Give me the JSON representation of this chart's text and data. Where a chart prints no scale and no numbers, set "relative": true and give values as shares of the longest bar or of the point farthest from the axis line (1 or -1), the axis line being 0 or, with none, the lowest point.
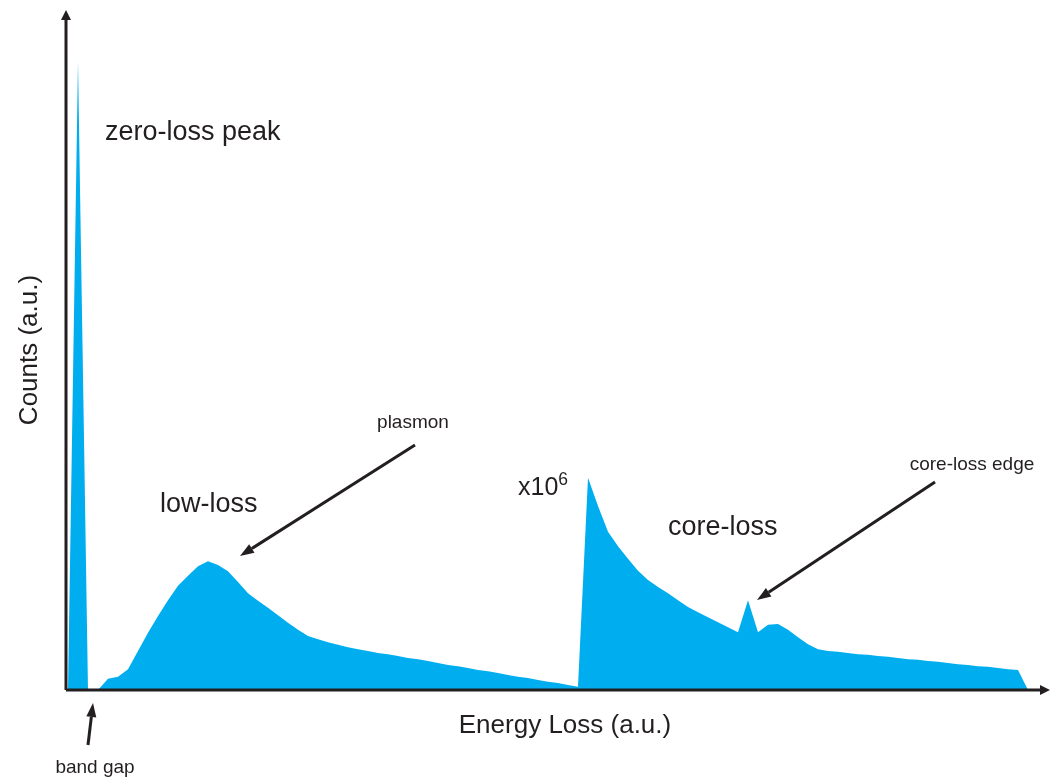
{
  "chart_data": {
    "type": "area",
    "relative": true,
    "xlabel": "Energy Loss (a.u.)",
    "ylabel": "Counts (a.u.)",
    "color": "#00aeef",
    "categories": [
      null,
      null,
      null,
      null,
      null,
      null,
      null,
      null,
      null,
      null,
      null,
      null,
      null,
      null,
      null,
      null,
      null,
      null,
      null,
      null,
      null,
      null,
      null,
      null,
      null,
      null,
      null,
      null,
      null,
      null,
      null,
      null,
      null,
      null,
      null,
      null,
      null,
      null,
      null,
      null,
      null,
      null,
      null,
      null,
      null,
      null,
      null,
      null,
      null,
      null,
      null,
      null,
      null,
      null,
      null,
      null,
      null,
      null,
      null,
      null,
      null,
      null,
      null,
      null,
      null,
      null,
      null,
      null,
      null,
      null,
      null,
      null,
      null,
      null,
      null,
      null,
      null,
      null,
      null,
      null,
      null,
      null,
      null,
      null,
      null,
      null,
      null,
      null,
      null,
      null,
      null,
      null,
      null,
      null,
      null,
      null,
      null,
      null,
      null
    ],
    "values": [
      0,
      1,
      0,
      0,
      0.018,
      0.021,
      0.033,
      0.062,
      0.091,
      0.118,
      0.143,
      0.166,
      0.182,
      0.197,
      0.205,
      0.199,
      0.189,
      0.172,
      0.154,
      0.142,
      0.131,
      0.119,
      0.107,
      0.096,
      0.086,
      0.081,
      0.076,
      0.072,
      0.068,
      0.065,
      0.062,
      0.059,
      0.057,
      0.054,
      0.051,
      0.049,
      0.046,
      0.043,
      0.04,
      0.038,
      0.035,
      0.032,
      0.03,
      0.027,
      0.024,
      0.021,
      0.019,
      0.016,
      0.013,
      0.011,
      0.008,
      0.005,
      0.338,
      0.293,
      0.252,
      0.229,
      0.209,
      0.19,
      0.175,
      0.164,
      0.154,
      0.143,
      0.132,
      0.124,
      0.116,
      0.108,
      0.1,
      0.092,
      0.143,
      0.092,
      0.104,
      0.105,
      0.096,
      0.084,
      0.073,
      0.065,
      0.062,
      0.061,
      0.059,
      0.057,
      0.056,
      0.054,
      0.053,
      0.051,
      0.049,
      0.048,
      0.046,
      0.045,
      0.043,
      0.041,
      0.04,
      0.038,
      0.037,
      0.035,
      0.033,
      0.032,
      0,
      0,
      0
    ],
    "annotations": [
      "zero-loss peak",
      "low-loss",
      "plasmon",
      "x10$^{6}$",
      "core-loss",
      "core-loss edge",
      "band gap"
    ]
  }
}
